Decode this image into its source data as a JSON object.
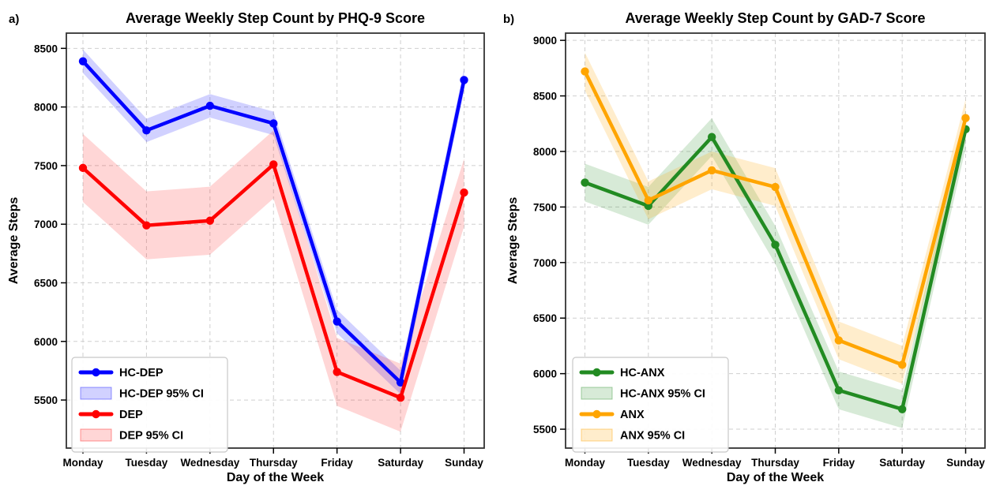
{
  "figure": {
    "background": "#ffffff",
    "panel_labels": [
      "a)",
      "b)"
    ]
  },
  "chart_data": [
    {
      "type": "line",
      "panel_label": "a)",
      "title": "Average Weekly Step Count by PHQ-9 Score",
      "xlabel": "Day of the Week",
      "ylabel": "Average Steps",
      "categories": [
        "Monday",
        "Tuesday",
        "Wednesday",
        "Thursday",
        "Friday",
        "Saturday",
        "Sunday"
      ],
      "ylim": [
        5090,
        8630
      ],
      "yticks": [
        5500,
        6000,
        6500,
        7000,
        7500,
        8000,
        8500
      ],
      "grid": true,
      "grid_style": "dashed",
      "legend_position": "lower left",
      "series": [
        {
          "name": "HC-DEP",
          "color": "#0000ff",
          "values": [
            8390,
            7800,
            8010,
            7860,
            6170,
            5650,
            8230
          ],
          "ci_label": "HC-DEP 95% CI",
          "ci_color": "rgba(0,0,255,0.18)",
          "ci_edge": "rgba(0,0,255,0.40)",
          "ci_halfwidth": 100
        },
        {
          "name": "DEP",
          "color": "#ff0000",
          "values": [
            7480,
            6990,
            7030,
            7510,
            5740,
            5520,
            7270
          ],
          "ci_label": "DEP 95% CI",
          "ci_color": "rgba(255,0,0,0.16)",
          "ci_edge": "rgba(255,0,0,0.40)",
          "ci_halfwidth": 290
        }
      ]
    },
    {
      "type": "line",
      "panel_label": "b)",
      "title": "Average Weekly Step Count by GAD-7 Score",
      "xlabel": "Day of the Week",
      "ylabel": "Average Steps",
      "categories": [
        "Monday",
        "Tuesday",
        "Wednesday",
        "Thursday",
        "Friday",
        "Saturday",
        "Sunday"
      ],
      "ylim": [
        5330,
        9065
      ],
      "yticks": [
        5500,
        6000,
        6500,
        7000,
        7500,
        8000,
        8500,
        9000
      ],
      "grid": true,
      "grid_style": "dashed",
      "legend_position": "lower left",
      "series": [
        {
          "name": "HC-ANX",
          "color": "#228B22",
          "values": [
            7720,
            7510,
            8130,
            7160,
            5850,
            5680,
            8200
          ],
          "ci_label": "HC-ANX 95% CI",
          "ci_color": "rgba(34,139,34,0.18)",
          "ci_edge": "rgba(34,139,34,0.40)",
          "ci_halfwidth": 170
        },
        {
          "name": "ANX",
          "color": "#FFA500",
          "values": [
            8720,
            7560,
            7830,
            7680,
            6300,
            6080,
            8300
          ],
          "ci_label": "ANX 95% CI",
          "ci_color": "rgba(255,165,0,0.20)",
          "ci_edge": "rgba(255,165,0,0.45)",
          "ci_halfwidth": 170
        }
      ]
    }
  ]
}
